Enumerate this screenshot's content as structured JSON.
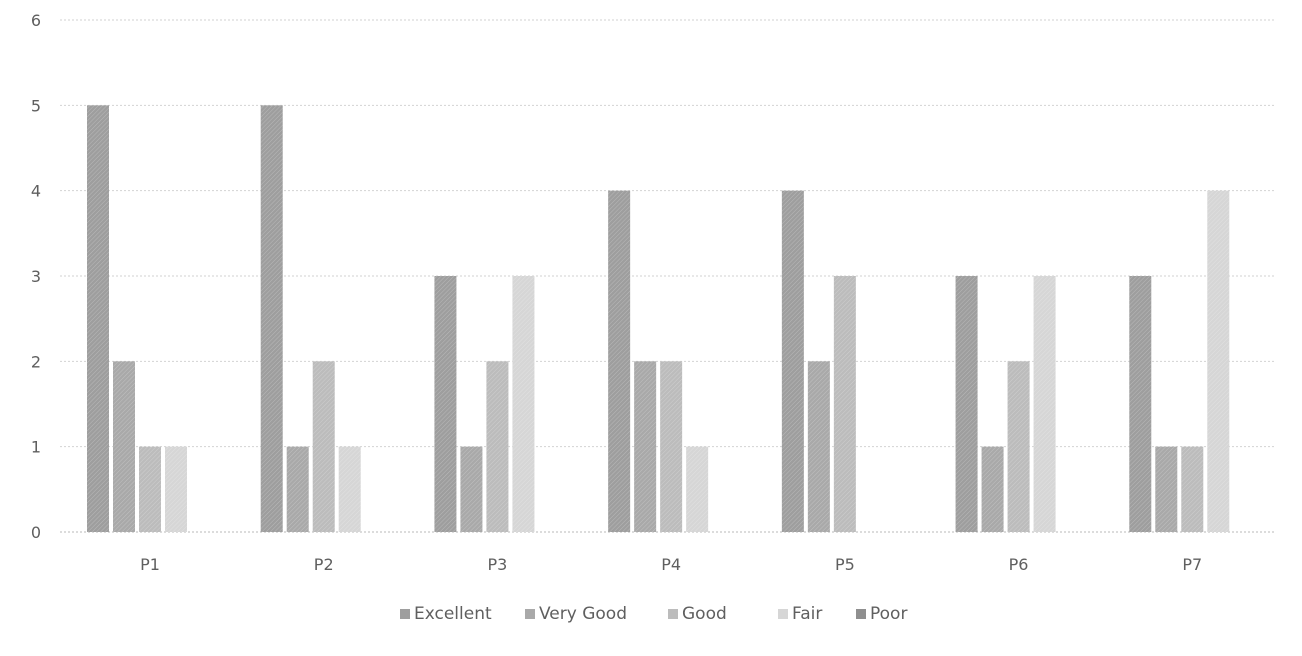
{
  "chart_data": {
    "type": "bar",
    "categories": [
      "P1",
      "P2",
      "P3",
      "P4",
      "P5",
      "P6",
      "P7"
    ],
    "series": [
      {
        "name": "Excellent",
        "values": [
          5,
          5,
          3,
          4,
          4,
          3,
          3
        ],
        "color": "#9e9e9e"
      },
      {
        "name": "Very Good",
        "values": [
          2,
          1,
          1,
          2,
          2,
          1,
          1
        ],
        "color": "#a9a9a9"
      },
      {
        "name": "Good",
        "values": [
          1,
          2,
          2,
          2,
          3,
          2,
          1
        ],
        "color": "#bcbcbc"
      },
      {
        "name": "Fair",
        "values": [
          1,
          1,
          3,
          1,
          0,
          3,
          4
        ],
        "color": "#d6d6d6"
      },
      {
        "name": "Poor",
        "values": [
          0,
          0,
          0,
          0,
          0,
          0,
          0
        ],
        "color": "#8f8f8f"
      }
    ],
    "ylim": [
      0,
      6
    ],
    "yticks": [
      0,
      1,
      2,
      3,
      4,
      5,
      6
    ],
    "grid": true,
    "legend_position": "bottom"
  }
}
